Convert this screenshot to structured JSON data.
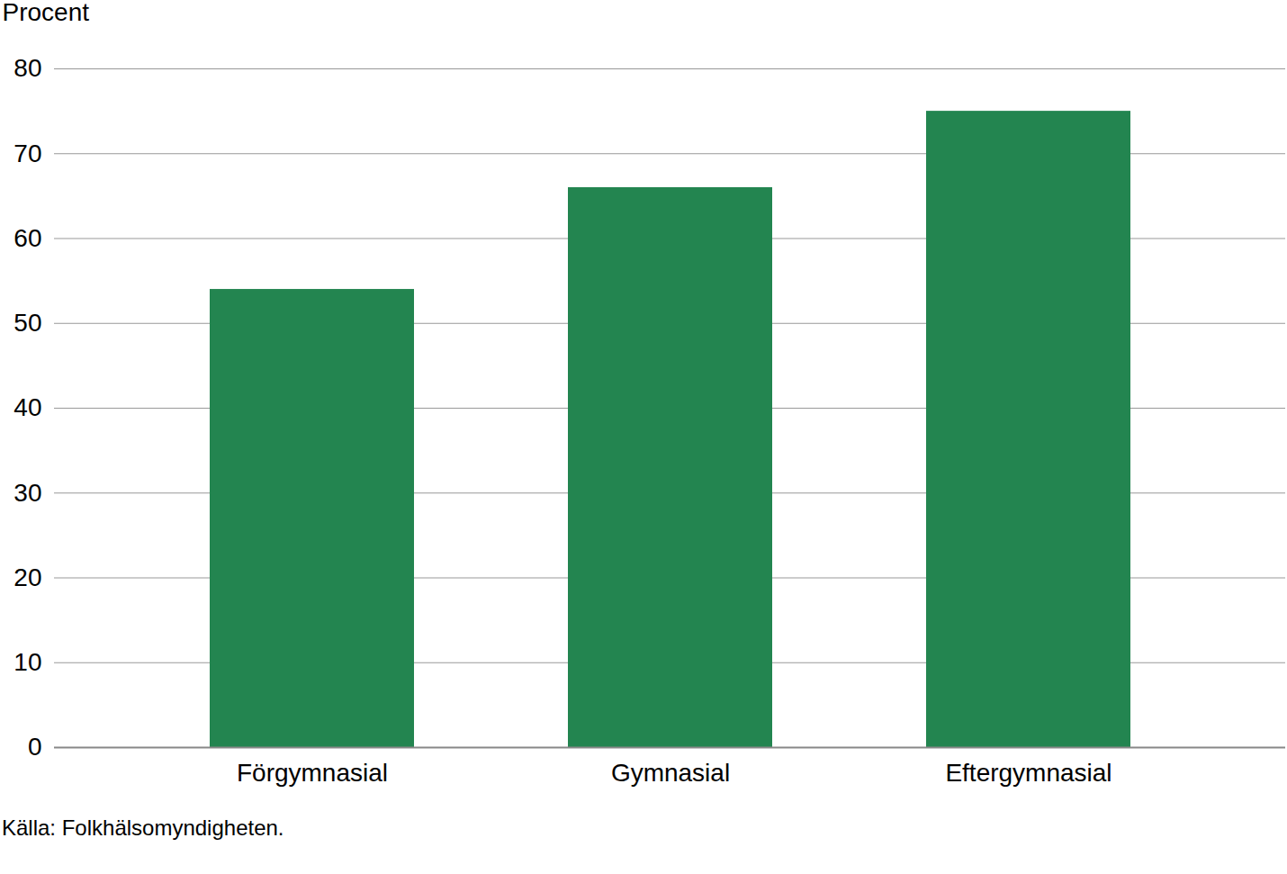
{
  "chart_data": {
    "type": "bar",
    "ylabel": "Procent",
    "caption": "Källa: Folkhälsomyndigheten.",
    "categories": [
      "Förgymnasial",
      "Gymnasial",
      "Eftergymnasial"
    ],
    "values": [
      54,
      66,
      75
    ],
    "color": "#238550",
    "ylim": [
      0,
      80
    ],
    "yticks": [
      0,
      10,
      20,
      30,
      40,
      50,
      60,
      70,
      80
    ],
    "grid": true
  }
}
